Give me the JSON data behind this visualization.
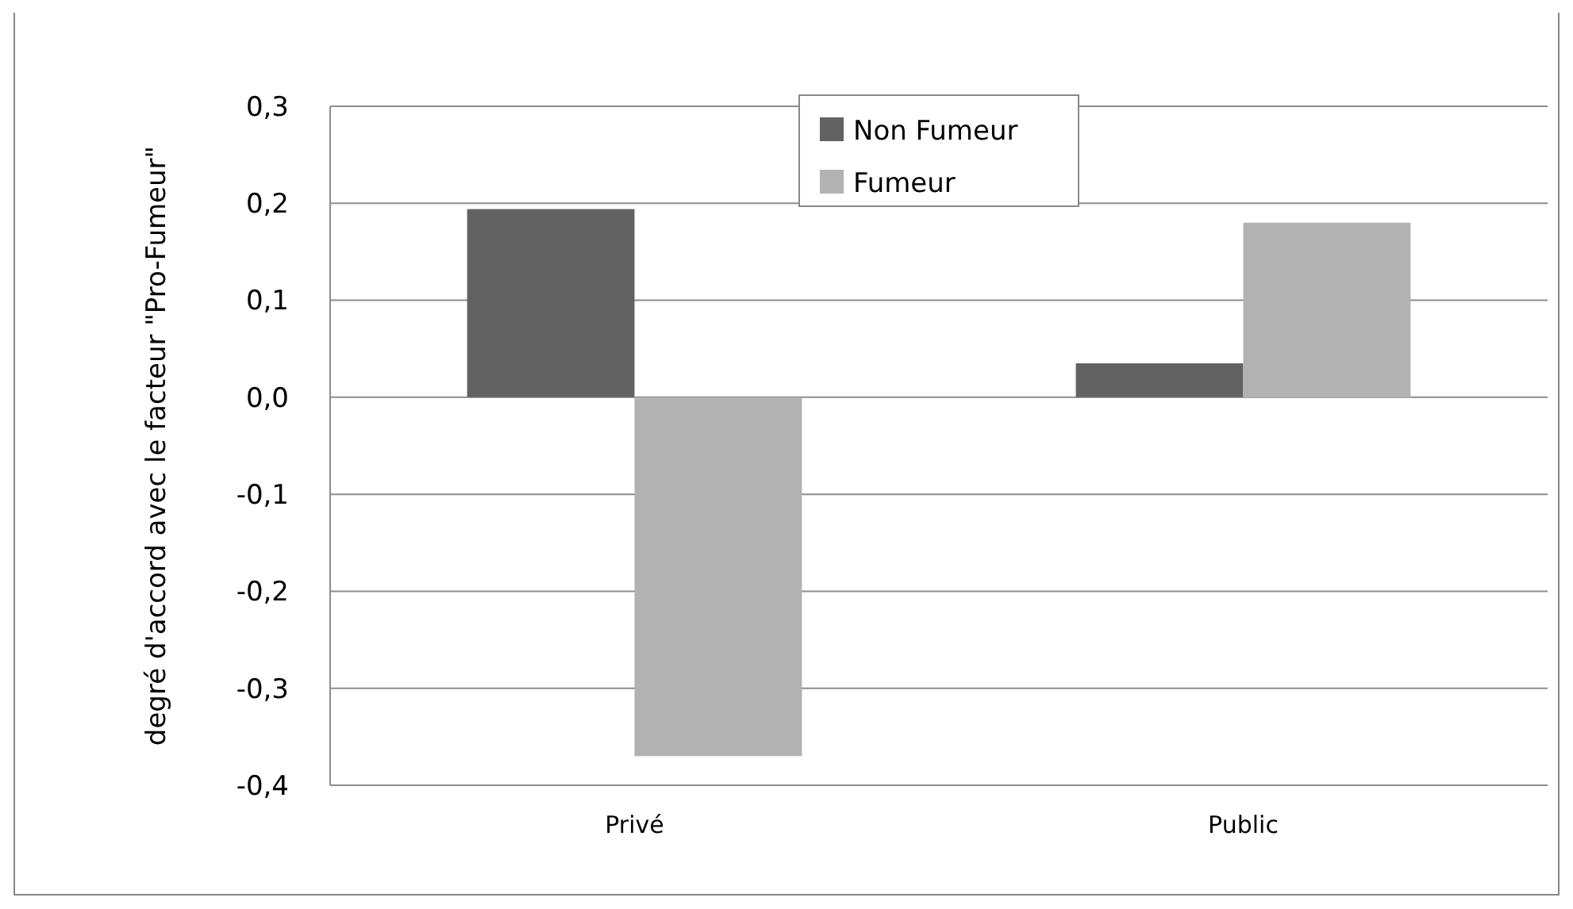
{
  "chart_data": {
    "type": "bar",
    "ylabel": "degré d'accord avec le facteur \"Pro-Fumeur\"",
    "categories": [
      "Privé",
      "Public"
    ],
    "series": [
      {
        "name": "Non Fumeur",
        "color": "#626262",
        "values": [
          0.194,
          0.035
        ]
      },
      {
        "name": "Fumeur",
        "color": "#b2b2b2",
        "values": [
          -0.37,
          0.18
        ]
      }
    ],
    "ylim": [
      -0.4,
      0.3
    ],
    "yticks": [
      {
        "value": -0.4,
        "label": "-0,4"
      },
      {
        "value": -0.3,
        "label": "-0,3"
      },
      {
        "value": -0.2,
        "label": "-0,2"
      },
      {
        "value": -0.1,
        "label": "-0,1"
      },
      {
        "value": 0,
        "label": "0,0"
      },
      {
        "value": 0.1,
        "label": "0,1"
      },
      {
        "value": 0.2,
        "label": "0,2"
      },
      {
        "value": 0.3,
        "label": "0,3"
      }
    ],
    "grid": "y",
    "legend": "top"
  }
}
